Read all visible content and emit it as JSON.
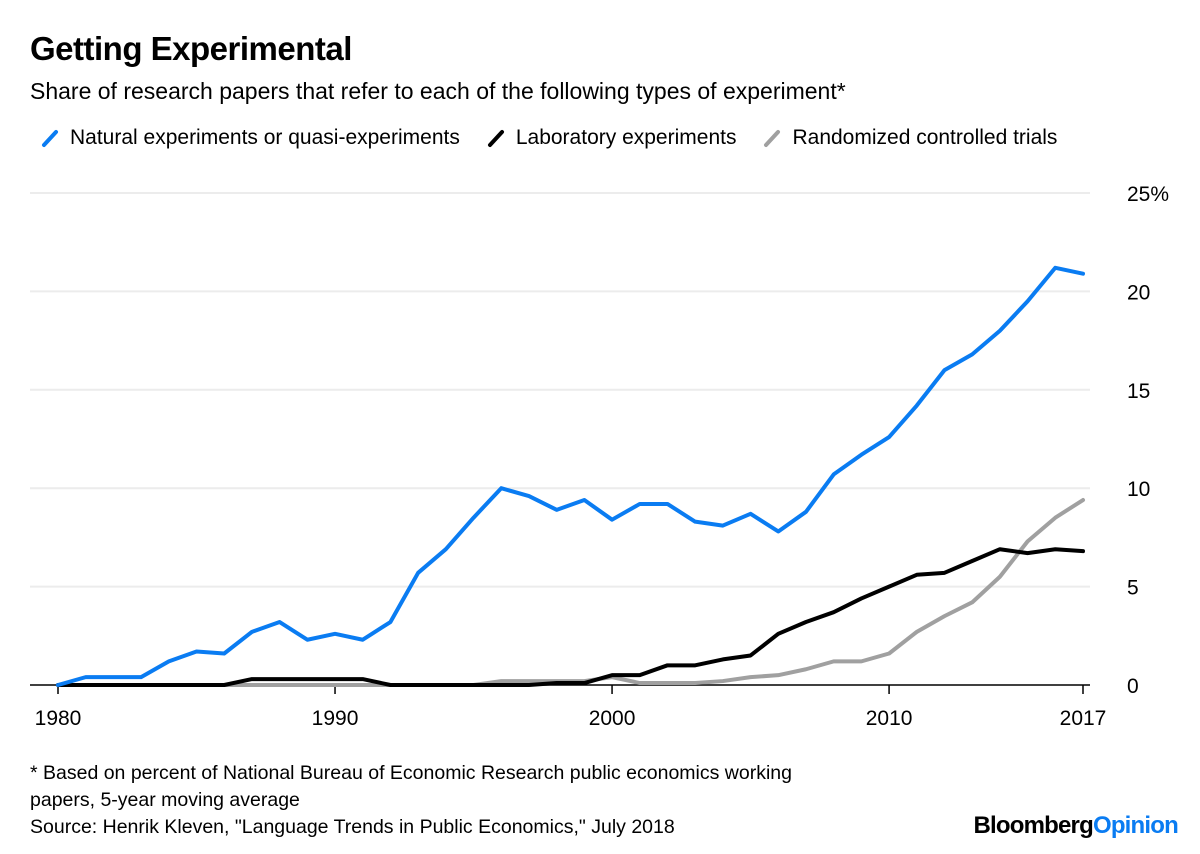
{
  "chart_data": {
    "type": "line",
    "title": "Getting Experimental",
    "subtitle": "Share of research papers that refer to each of the following types of experiment*",
    "xlabel": "",
    "ylabel": "",
    "x": [
      1980,
      1981,
      1982,
      1983,
      1984,
      1985,
      1986,
      1987,
      1988,
      1989,
      1990,
      1991,
      1992,
      1993,
      1994,
      1995,
      1996,
      1997,
      1998,
      1999,
      2000,
      2001,
      2002,
      2003,
      2004,
      2005,
      2006,
      2007,
      2008,
      2009,
      2010,
      2011,
      2012,
      2013,
      2014,
      2015,
      2016,
      2017
    ],
    "xlim": [
      1980,
      2017
    ],
    "ylim": [
      0,
      25
    ],
    "x_ticks": [
      "1980",
      "1990",
      "2000",
      "2010",
      "2017"
    ],
    "y_ticks": [
      "0",
      "5",
      "10",
      "15",
      "20",
      "25%"
    ],
    "grid": true,
    "legend_position": "top",
    "series": [
      {
        "name": "Natural experiments or quasi-experiments",
        "color": "#0a7cf2",
        "values": [
          0,
          0.4,
          0.4,
          0.4,
          1.2,
          1.7,
          1.6,
          2.7,
          3.2,
          2.3,
          2.6,
          2.3,
          3.2,
          5.7,
          6.9,
          8.5,
          10.0,
          9.6,
          8.9,
          9.4,
          8.4,
          9.2,
          9.2,
          8.3,
          8.1,
          8.7,
          7.8,
          8.8,
          10.7,
          11.7,
          12.6,
          14.2,
          16.0,
          16.8,
          18.0,
          19.5,
          21.2,
          20.9
        ]
      },
      {
        "name": "Laboratory experiments",
        "color": "#000000",
        "values": [
          0,
          0,
          0,
          0,
          0,
          0,
          0,
          0.3,
          0.3,
          0.3,
          0.3,
          0.3,
          0,
          0,
          0,
          0,
          0,
          0,
          0.1,
          0.1,
          0.5,
          0.5,
          1.0,
          1.0,
          1.3,
          1.5,
          2.6,
          3.2,
          3.7,
          4.4,
          5.0,
          5.6,
          5.7,
          6.3,
          6.9,
          6.7,
          6.9,
          6.8
        ]
      },
      {
        "name": "Randomized controlled trials",
        "color": "#a0a0a0",
        "values": [
          0,
          0,
          0,
          0,
          0,
          0,
          0,
          0,
          0,
          0,
          0,
          0,
          0,
          0,
          0,
          0,
          0.2,
          0.2,
          0.2,
          0.2,
          0.4,
          0.1,
          0.1,
          0.1,
          0.2,
          0.4,
          0.5,
          0.8,
          1.2,
          1.2,
          1.6,
          2.7,
          3.5,
          4.2,
          5.5,
          7.3,
          8.5,
          9.4
        ]
      }
    ]
  },
  "footnote_line1": "* Based on percent of National Bureau of Economic Research public economics working",
  "footnote_line2": "papers, 5-year moving average",
  "source": "Source: Henrik Kleven, \"Language Trends in Public Economics,\" July 2018",
  "logo": {
    "part1": "Bloomberg",
    "part2": "Opinion",
    "color2": "#0a7cf2"
  }
}
